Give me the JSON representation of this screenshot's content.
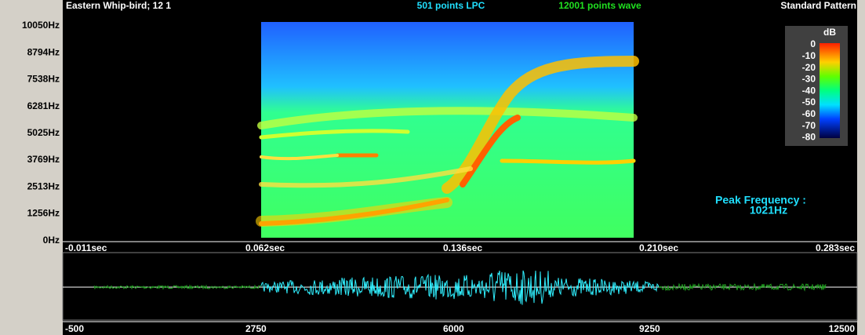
{
  "header": {
    "title": "Eastern Whip-bird; 12 1",
    "lpc": "501 points LPC",
    "wave": "12001 points wave",
    "pattern": "Standard Pattern"
  },
  "spectrogram": {
    "y_labels": [
      "10050Hz",
      "8794Hz",
      "7538Hz",
      "6281Hz",
      "5025Hz",
      "3769Hz",
      "2513Hz",
      "1256Hz",
      "0Hz"
    ],
    "x_labels": [
      "-0.011sec",
      "0.062sec",
      "0.136sec",
      "0.210sec",
      "0.283sec"
    ],
    "colorbar": {
      "unit": "dB",
      "labels": [
        "0",
        "-10",
        "-20",
        "-30",
        "-40",
        "-50",
        "-60",
        "-70",
        "-80"
      ]
    },
    "peak": {
      "label": "Peak Frequency :",
      "value": "1021Hz"
    }
  },
  "waveform": {
    "x_labels": [
      "-500",
      "2750",
      "6000",
      "9250",
      "12500"
    ]
  }
}
